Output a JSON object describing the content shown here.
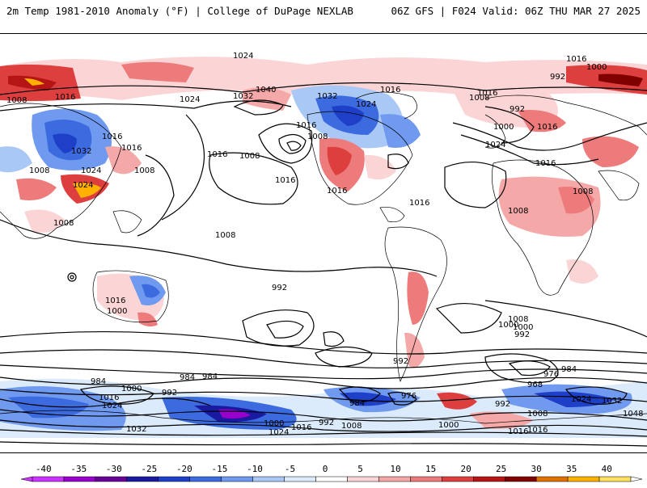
{
  "header": {
    "title_left": "2m Temp 1981-2010 Anomaly (°F) | College of DuPage NEXLAB",
    "title_right": "06Z GFS | F024 Valid: 06Z THU MAR 27 2025"
  },
  "colorbar": {
    "ticks": [
      "-40",
      "-35",
      "-30",
      "-25",
      "-20",
      "-15",
      "-10",
      "-5",
      "0",
      "5",
      "10",
      "15",
      "20",
      "25",
      "30",
      "35",
      "40"
    ],
    "colors": [
      "#cc33ff",
      "#9900cc",
      "#660099",
      "#1a1aa0",
      "#1e40c8",
      "#3c6be0",
      "#6f9af0",
      "#a9c8f5",
      "#dcebfb",
      "#ffffff",
      "#fbd5d5",
      "#f5a8a8",
      "#ee7b7b",
      "#dd3f3f",
      "#b51515",
      "#800000",
      "#e07000",
      "#ffb000",
      "#ffe060"
    ]
  },
  "isobar_labels": [
    "1024",
    "1016",
    "1000",
    "992",
    "1008",
    "1024",
    "1032",
    "1040",
    "1016",
    "1032",
    "1024",
    "1016",
    "1008",
    "1016",
    "1032",
    "1024",
    "1008",
    "1016",
    "1008",
    "1024",
    "1016",
    "1016",
    "1008",
    "1016",
    "1008",
    "992",
    "1000",
    "1016",
    "1008",
    "1016",
    "1024",
    "1016",
    "1008",
    "1016",
    "1016",
    "1008",
    "1000",
    "992",
    "1008",
    "1016",
    "1000",
    "1008",
    "1000",
    "992",
    "984",
    "976",
    "984",
    "968",
    "976",
    "992",
    "1008",
    "1016",
    "1024",
    "1032",
    "1048",
    "984",
    "1000",
    "992",
    "984",
    "1016",
    "1024",
    "1032",
    "1000",
    "1016",
    "1024",
    "992",
    "1008",
    "1000",
    "1016",
    "984",
    "992"
  ]
}
